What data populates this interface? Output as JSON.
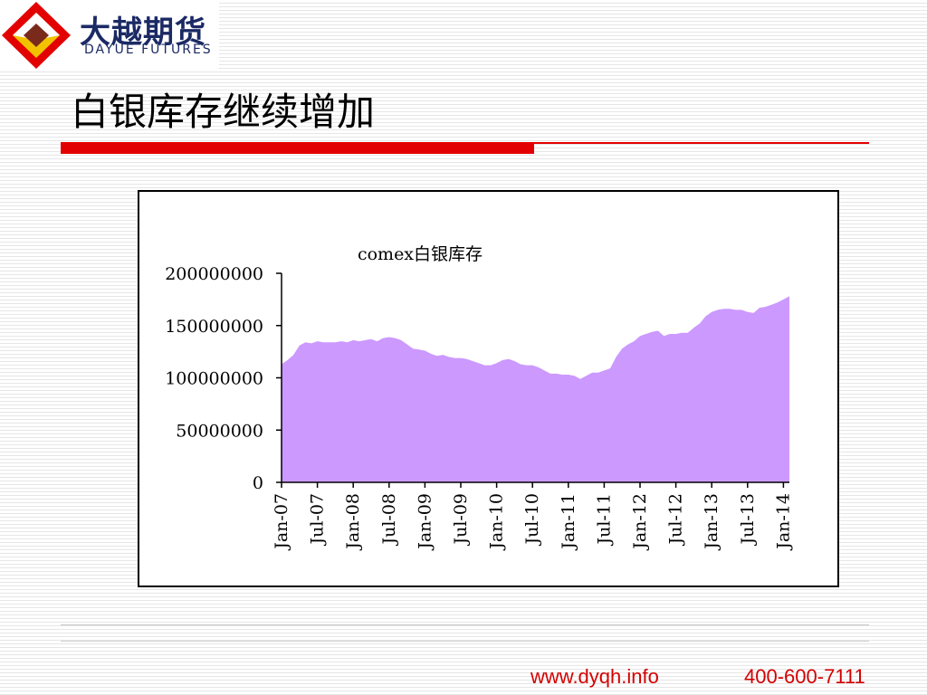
{
  "logo": {
    "name_cn": "大越期货",
    "name_en": "DAYUE FUTURES",
    "colors": {
      "navy": "#1b2a64",
      "red": "#e30000",
      "yellow": "#f2c200",
      "brown": "#7a2a1a"
    }
  },
  "page": {
    "title": "白银库存继续增加",
    "accent_color": "#e30000"
  },
  "footer": {
    "url": "www.dyqh.info",
    "phone": "400-600-7111",
    "color": "#d40000"
  },
  "chart_data": {
    "type": "area",
    "title": "comex白银库存",
    "xlabel": "",
    "ylabel": "",
    "ylim": [
      0,
      200000000
    ],
    "yticks": [
      0,
      50000000,
      100000000,
      150000000,
      200000000
    ],
    "ytick_labels": [
      "0",
      "50000000",
      "100000000",
      "150000000",
      "200000000"
    ],
    "xtick_labels": [
      "Jan-07",
      "Jul-07",
      "Jan-08",
      "Jul-08",
      "Jan-09",
      "Jul-09",
      "Jan-10",
      "Jul-10",
      "Jan-11",
      "Jul-11",
      "Jan-12",
      "Jul-12",
      "Jan-13",
      "Jul-13",
      "Jan-14"
    ],
    "fill_color": "#cc99ff",
    "grid": false,
    "legend": "none",
    "series": [
      {
        "x": [
          "2007-01",
          "2007-02",
          "2007-03",
          "2007-04",
          "2007-05",
          "2007-06",
          "2007-07",
          "2007-08",
          "2007-09",
          "2007-10",
          "2007-11",
          "2007-12",
          "2008-01",
          "2008-02",
          "2008-03",
          "2008-04",
          "2008-05",
          "2008-06",
          "2008-07",
          "2008-08",
          "2008-09",
          "2008-10",
          "2008-11",
          "2008-12",
          "2009-01",
          "2009-02",
          "2009-03",
          "2009-04",
          "2009-05",
          "2009-06",
          "2009-07",
          "2009-08",
          "2009-09",
          "2009-10",
          "2009-11",
          "2009-12",
          "2010-01",
          "2010-02",
          "2010-03",
          "2010-04",
          "2010-05",
          "2010-06",
          "2010-07",
          "2010-08",
          "2010-09",
          "2010-10",
          "2010-11",
          "2010-12",
          "2011-01",
          "2011-02",
          "2011-03",
          "2011-04",
          "2011-05",
          "2011-06",
          "2011-07",
          "2011-08",
          "2011-09",
          "2011-10",
          "2011-11",
          "2011-12",
          "2012-01",
          "2012-02",
          "2012-03",
          "2012-04",
          "2012-05",
          "2012-06",
          "2012-07",
          "2012-08",
          "2012-09",
          "2012-10",
          "2012-11",
          "2012-12",
          "2013-01",
          "2013-02",
          "2013-03",
          "2013-04",
          "2013-05",
          "2013-06",
          "2013-07",
          "2013-08",
          "2013-09",
          "2013-10",
          "2013-11",
          "2013-12",
          "2014-01",
          "2014-02"
        ],
        "values": [
          113000000,
          117000000,
          122000000,
          131000000,
          134000000,
          133000000,
          135000000,
          134000000,
          134000000,
          134000000,
          135000000,
          134000000,
          136000000,
          135000000,
          136000000,
          137000000,
          135000000,
          138000000,
          139000000,
          138000000,
          136000000,
          132000000,
          128000000,
          127000000,
          126000000,
          123000000,
          121000000,
          122000000,
          120000000,
          119000000,
          119000000,
          118000000,
          116000000,
          114000000,
          112000000,
          112000000,
          114000000,
          117000000,
          118000000,
          116000000,
          113000000,
          112000000,
          112000000,
          110000000,
          107000000,
          104000000,
          104000000,
          103000000,
          103000000,
          102000000,
          99000000,
          102000000,
          105000000,
          105000000,
          107000000,
          109000000,
          120000000,
          128000000,
          132000000,
          135000000,
          140000000,
          142000000,
          144000000,
          145000000,
          140000000,
          142000000,
          142000000,
          143000000,
          143000000,
          148000000,
          152000000,
          159000000,
          163000000,
          165000000,
          166000000,
          166000000,
          165000000,
          165000000,
          163000000,
          162000000,
          167000000,
          168000000,
          170000000,
          172000000,
          175000000,
          178000000
        ]
      }
    ]
  }
}
